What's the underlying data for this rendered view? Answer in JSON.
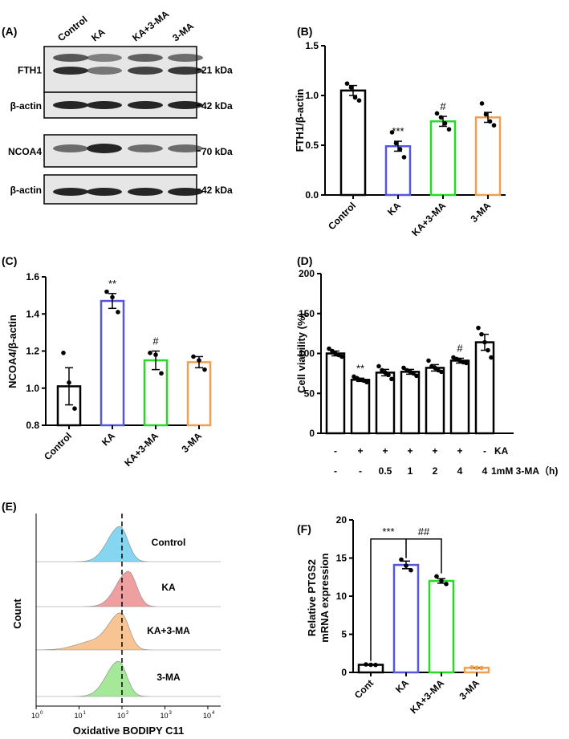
{
  "chart_data": [
    {
      "panel": "(A)",
      "type": "western-blot",
      "lanes": [
        "Control",
        "KA",
        "KA+3-MA",
        "3-MA"
      ],
      "rows": [
        {
          "protein": "FTH1",
          "marker": "21 kDa"
        },
        {
          "protein": "β-actin",
          "marker": "42 kDa"
        },
        {
          "protein": "NCOA4",
          "marker": "70 kDa"
        },
        {
          "protein": "β-actin",
          "marker": "42 kDa"
        }
      ]
    },
    {
      "panel": "(B)",
      "type": "bar",
      "categories": [
        "Control",
        "KA",
        "KA+3-MA",
        "3-MA"
      ],
      "values": [
        1.05,
        0.49,
        0.74,
        0.78
      ],
      "errors": [
        0.05,
        0.05,
        0.05,
        0.05
      ],
      "points": [
        [
          1.12,
          1.08,
          0.98,
          0.95
        ],
        [
          0.63,
          0.52,
          0.46,
          0.38
        ],
        [
          0.82,
          0.78,
          0.72,
          0.66
        ],
        [
          0.92,
          0.81,
          0.74,
          0.7
        ]
      ],
      "colors": [
        "#000000",
        "#5555dd",
        "#22dd22",
        "#f0a050"
      ],
      "significance": [
        "",
        "***",
        "#",
        ""
      ],
      "ylabel": "FTH1/β-actin",
      "ylim": [
        0,
        1.5
      ],
      "yticks": [
        "0.0",
        "0.5",
        "1.0",
        "1.5"
      ]
    },
    {
      "panel": "(C)",
      "type": "bar",
      "categories": [
        "Control",
        "KA",
        "KA+3-MA",
        "3-MA"
      ],
      "values": [
        1.01,
        1.47,
        1.15,
        1.14
      ],
      "errors": [
        0.1,
        0.04,
        0.05,
        0.03
      ],
      "points": [
        [
          1.19,
          1.03,
          0.89
        ],
        [
          1.52,
          1.49,
          1.41
        ],
        [
          1.19,
          1.18,
          1.08
        ],
        [
          1.17,
          1.15,
          1.1
        ]
      ],
      "colors": [
        "#000000",
        "#5555dd",
        "#22dd22",
        "#f0a050"
      ],
      "significance": [
        "",
        "**",
        "#",
        ""
      ],
      "ylabel": "NCOA4/β-actin",
      "ylim": [
        0.8,
        1.6
      ],
      "yticks": [
        "0.8",
        "1.0",
        "1.2",
        "1.4",
        "1.6"
      ]
    },
    {
      "panel": "(D)",
      "type": "bar",
      "values": [
        100,
        67,
        76,
        77,
        82,
        91,
        114
      ],
      "errors": [
        3,
        2,
        4,
        3,
        4,
        3,
        10
      ],
      "points": [
        [
          106,
          103,
          100,
          98,
          96
        ],
        [
          71,
          69,
          67,
          66,
          64
        ],
        [
          84,
          79,
          76,
          73,
          68
        ],
        [
          82,
          79,
          77,
          75,
          72
        ],
        [
          91,
          84,
          82,
          79,
          77
        ],
        [
          95,
          93,
          91,
          89,
          88
        ],
        [
          132,
          124,
          114,
          104,
          95
        ]
      ],
      "significance": [
        "",
        "**",
        "",
        "",
        "",
        "#",
        ""
      ],
      "row1": [
        "-",
        "+",
        "+",
        "+",
        "+",
        "+",
        "-"
      ],
      "row1_label": "KA",
      "row2": [
        "-",
        "-",
        "0.5",
        "1",
        "2",
        "4",
        "4"
      ],
      "row2_label": "1mM 3-MA（h)",
      "ylabel": "Cell viability (%)",
      "ylim": [
        0,
        200
      ],
      "yticks": [
        "0",
        "50",
        "100",
        "150",
        "200"
      ]
    },
    {
      "panel": "(E)",
      "type": "histogram-overlay",
      "xlabel": "Oxidative BODIPY C11",
      "ylabel": "Count",
      "xtick_labels": [
        "10",
        "10",
        "10",
        "10",
        "10"
      ],
      "xtick_exps": [
        "0",
        "1",
        "2",
        "3",
        "4"
      ],
      "series": [
        {
          "name": "Control",
          "color": "#5ec8ec",
          "peak_log": 1.95
        },
        {
          "name": "KA",
          "color": "#e88080",
          "peak_log": 2.15
        },
        {
          "name": "KA+3-MA",
          "color": "#f5b070",
          "peak_log": 1.98
        },
        {
          "name": "3-MA",
          "color": "#88e078",
          "peak_log": 1.92
        }
      ],
      "reference_log": 2.0
    },
    {
      "panel": "(F)",
      "type": "bar",
      "categories": [
        "Cont",
        "KA",
        "KA+3-MA",
        "3-MA"
      ],
      "values": [
        1.0,
        14.1,
        12.0,
        0.6
      ],
      "errors": [
        0.05,
        0.5,
        0.3,
        0.05
      ],
      "points": [
        [
          1.05,
          1.0,
          0.98
        ],
        [
          14.8,
          14.0,
          13.4
        ],
        [
          12.6,
          12.0,
          11.6
        ],
        [
          0.65,
          0.6,
          0.58
        ]
      ],
      "colors": [
        "#000000",
        "#5555dd",
        "#22dd22",
        "#f0a050"
      ],
      "brackets": [
        {
          "from": 0,
          "to": 1,
          "label": "***"
        },
        {
          "from": 1,
          "to": 2,
          "label": "##"
        }
      ],
      "ylabel": [
        "Relative PTGS2",
        "mRNA expression"
      ],
      "ylim": [
        0,
        20
      ],
      "yticks": [
        "0",
        "5",
        "10",
        "15",
        "20"
      ]
    }
  ]
}
